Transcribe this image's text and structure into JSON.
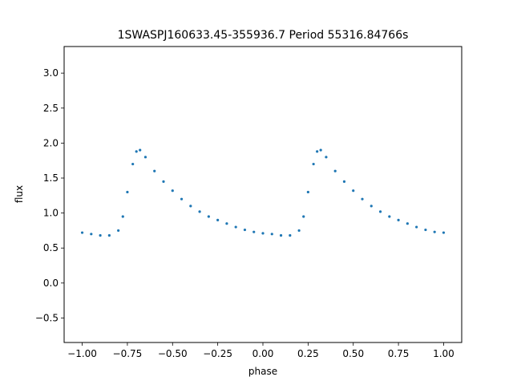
{
  "chart_data": {
    "type": "scatter",
    "title": "1SWASPJ160633.45-355936.7 Period 55316.84766s",
    "xlabel": "phase",
    "ylabel": "flux",
    "xlim": [
      -1.1,
      1.1
    ],
    "ylim": [
      -0.85,
      3.38
    ],
    "x_ticks": [
      -1.0,
      -0.75,
      -0.5,
      -0.25,
      0.0,
      0.25,
      0.5,
      0.75,
      1.0
    ],
    "x_tick_labels": [
      "−1.00",
      "−0.75",
      "−0.50",
      "−0.25",
      "0.00",
      "0.25",
      "0.50",
      "0.75",
      "1.00"
    ],
    "y_ticks": [
      -0.5,
      0.0,
      0.5,
      1.0,
      1.5,
      2.0,
      2.5,
      3.0
    ],
    "y_tick_labels": [
      "−0.5",
      "0.0",
      "0.5",
      "1.0",
      "1.5",
      "2.0",
      "2.5",
      "3.0"
    ],
    "grid": false,
    "legend": "none",
    "point_color": "#1f77b4",
    "series": [
      {
        "x": [
          -1.0,
          -0.95,
          -0.9,
          -0.85,
          -0.8,
          -0.775,
          -0.75,
          -0.72,
          -0.7,
          -0.68,
          -0.65,
          -0.6,
          -0.55,
          -0.5,
          -0.45,
          -0.4,
          -0.35,
          -0.3,
          -0.25,
          -0.2,
          -0.15,
          -0.1,
          -0.05,
          0.0,
          0.05,
          0.1,
          0.15,
          0.2,
          0.225,
          0.25,
          0.28,
          0.3,
          0.32,
          0.35,
          0.4,
          0.45,
          0.5,
          0.55,
          0.6,
          0.65,
          0.7,
          0.75,
          0.8,
          0.85,
          0.9,
          0.95,
          1.0
        ],
        "y": [
          0.72,
          0.7,
          0.68,
          0.68,
          0.75,
          0.95,
          1.3,
          1.7,
          1.88,
          1.9,
          1.8,
          1.6,
          1.45,
          1.32,
          1.2,
          1.1,
          1.02,
          0.95,
          0.9,
          0.85,
          0.8,
          0.76,
          0.73,
          0.71,
          0.7,
          0.68,
          0.68,
          0.75,
          0.95,
          1.3,
          1.7,
          1.88,
          1.9,
          1.8,
          1.6,
          1.45,
          1.32,
          1.2,
          1.1,
          1.02,
          0.95,
          0.9,
          0.85,
          0.8,
          0.76,
          0.73,
          0.72
        ]
      }
    ]
  }
}
